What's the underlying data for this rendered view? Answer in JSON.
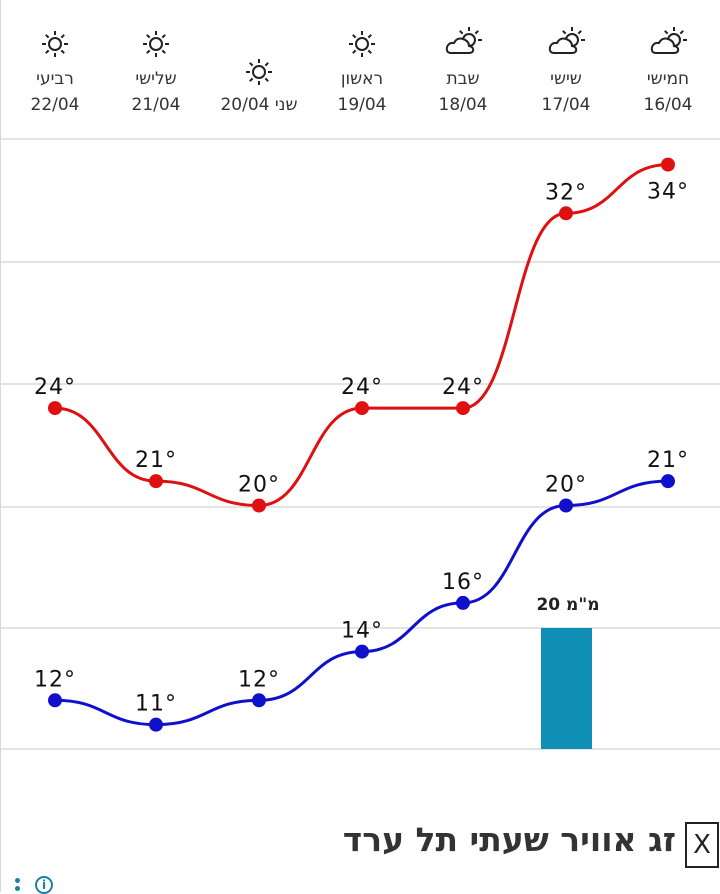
{
  "chart_data": {
    "type": "line",
    "days": [
      {
        "day": "רביעי",
        "date": "22/04",
        "icon": "sun-icon"
      },
      {
        "day": "שלישי",
        "date": "21/04",
        "icon": "sun-icon"
      },
      {
        "day": "שני",
        "date": "20/04",
        "icon": "sun-icon"
      },
      {
        "day": "ראשון",
        "date": "19/04",
        "icon": "sun-icon"
      },
      {
        "day": "שבת",
        "date": "18/04",
        "icon": "partly-cloudy-icon"
      },
      {
        "day": "שישי",
        "date": "17/04",
        "icon": "partly-cloudy-icon"
      },
      {
        "day": "חמישי",
        "date": "16/04",
        "icon": "partly-cloudy-icon"
      }
    ],
    "series": [
      {
        "values": [
          24,
          21,
          20,
          24,
          24,
          32,
          34
        ],
        "color": "#e01010"
      },
      {
        "values": [
          12,
          11,
          12,
          14,
          16,
          20,
          21
        ],
        "color": "#1010cc"
      }
    ],
    "degree_suffix": "°",
    "ylim": [
      10,
      36
    ],
    "grid": true,
    "bar": {
      "day_index": 5,
      "label": "20 מ\"מ",
      "color": "#0f8fb5"
    }
  },
  "footer": {
    "title": "זג אוויר שעתי תל ערד",
    "close_label": "X",
    "info_label": "i"
  }
}
